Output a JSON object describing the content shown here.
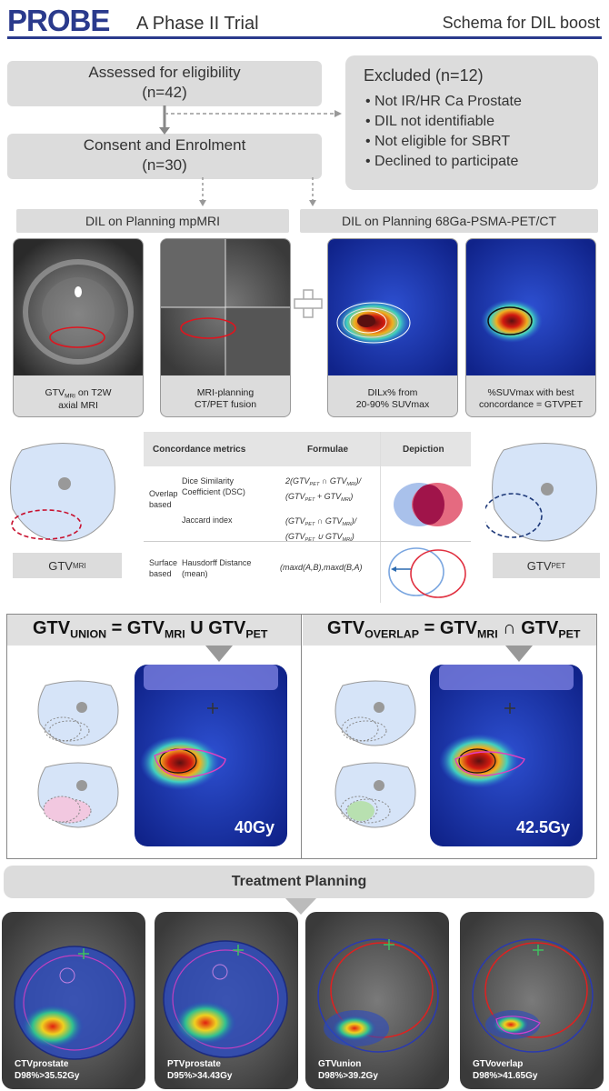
{
  "header": {
    "logo": "PROBE",
    "title": "A Phase II Trial",
    "right_title": "Schema for DIL boost"
  },
  "flow": {
    "assessed": {
      "label": "Assessed for eligibility",
      "n": "(n=42)"
    },
    "consent": {
      "label": "Consent and Enrolment",
      "n": "(n=30)"
    },
    "excluded": {
      "title": "Excluded (n=12)",
      "reasons": [
        "Not IR/HR Ca Prostate",
        "DIL not identifiable",
        "Not eligible for SBRT",
        "Declined to participate"
      ]
    }
  },
  "sections": {
    "mri": "DIL on Planning mpMRI",
    "pet": "DIL on Planning 68Ga-PSMA-PET/CT"
  },
  "panels": [
    {
      "l1a": "GTV",
      "l1sub": "MRI",
      "l1b": " on T2W",
      "l2": "axial MRI"
    },
    {
      "l1a": "MRI-planning",
      "l1sub": "",
      "l1b": "",
      "l2": "CT/PET fusion"
    },
    {
      "l1a": "DILx% from",
      "l1sub": "",
      "l1b": "",
      "l2": "20-90% SUVmax"
    },
    {
      "l1a": "%SUVmax with best",
      "l1sub": "",
      "l1b": "",
      "l2": "concordance = GTVPET"
    }
  ],
  "labels": {
    "gtv": "GTV",
    "mri": "MRI",
    "pet": "PET"
  },
  "metrics": {
    "headers": [
      "Concordance metrics",
      "Formulae",
      "Depiction"
    ],
    "group1": "Overlap based",
    "dsc": "Dice Similarity Coefficient (DSC)",
    "jaccard": "Jaccard index",
    "group2": "Surface based",
    "hausdorff": "Hausdorff Distance (mean)",
    "f1n": "2(GTV",
    "f1n2": " ∩ GTV",
    "f1n3": ")/",
    "f1d": "(GTV",
    "f1d2": " + GTV",
    "f1d3": ")",
    "f2n": "(GTV",
    "f2n2": " ∩ GTV",
    "f2n3": ")/",
    "f2d": "(GTV",
    "f2d2": " ∪ GTV",
    "f2d3": ")",
    "f3": "(maxd(A,B),maxd(B,A)"
  },
  "union": {
    "t1": "GTV",
    "t1sub": "UNION",
    "t2": " = GTV",
    "t2sub": "MRI",
    "t3": " U GTV",
    "t3sub": "PET",
    "dose": "40Gy"
  },
  "overlap": {
    "t1": "GTV",
    "t1sub": "OVERLAP",
    "t2": " = GTV",
    "t2sub": "MRI",
    "t3": " ∩ GTV",
    "t3sub": "PET",
    "dose": "42.5Gy"
  },
  "planning": {
    "title": "Treatment Planning",
    "plans": [
      {
        "name": "CTVprostate",
        "dose": "D98%>35.52Gy"
      },
      {
        "name": "PTVprostate",
        "dose": "D95%>34.43Gy"
      },
      {
        "name": "GTVunion",
        "dose": "D98%>39.2Gy"
      },
      {
        "name": "GTVoverlap",
        "dose": "D98%>41.65Gy"
      }
    ]
  },
  "colors": {
    "navy": "#2a3a8c",
    "grey_box": "#dcdcdc",
    "mri_red": "#c8102e",
    "pet_navy": "#1f3a7a"
  }
}
